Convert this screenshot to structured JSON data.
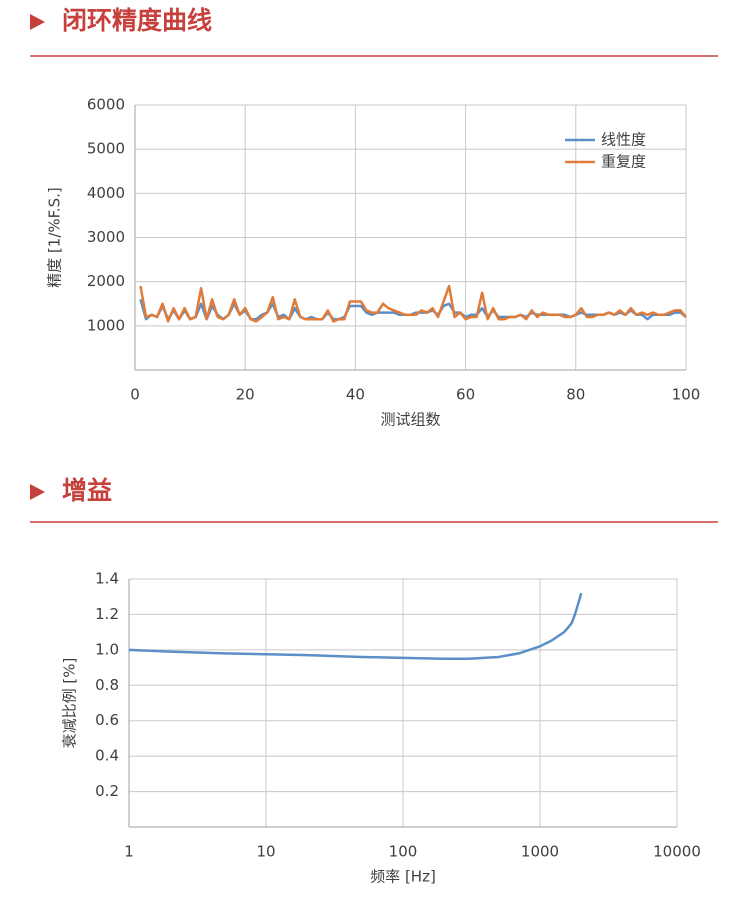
{
  "chart_data": [
    {
      "type": "line",
      "title": "闭环精度曲线",
      "xlabel": "测试组数",
      "ylabel": "精度 [1/%F.S.]",
      "x": [
        1,
        2,
        3,
        4,
        5,
        6,
        7,
        8,
        9,
        10,
        11,
        12,
        13,
        14,
        15,
        16,
        17,
        18,
        19,
        20,
        21,
        22,
        23,
        24,
        25,
        26,
        27,
        28,
        29,
        30,
        31,
        32,
        33,
        34,
        35,
        36,
        37,
        38,
        39,
        40,
        41,
        42,
        43,
        44,
        45,
        46,
        47,
        48,
        49,
        50,
        51,
        52,
        53,
        54,
        55,
        56,
        57,
        58,
        59,
        60,
        61,
        62,
        63,
        64,
        65,
        66,
        67,
        68,
        69,
        70,
        71,
        72,
        73,
        74,
        75,
        76,
        77,
        78,
        79,
        80,
        81,
        82,
        83,
        84,
        85,
        86,
        87,
        88,
        89,
        90,
        91,
        92,
        93,
        94,
        95,
        96,
        97,
        98,
        99,
        100
      ],
      "xlim": [
        0,
        100
      ],
      "xticks": [
        0,
        20,
        40,
        60,
        80,
        100
      ],
      "ylim": [
        0,
        6000
      ],
      "yticks": [
        1000,
        2000,
        3000,
        4000,
        5000,
        6000
      ],
      "grid": true,
      "legend": "upper right",
      "series": [
        {
          "name": "线性度",
          "color": "#5b8fc7",
          "values": [
            1600,
            1150,
            1250,
            1200,
            1450,
            1150,
            1350,
            1150,
            1350,
            1150,
            1200,
            1500,
            1150,
            1450,
            1250,
            1150,
            1250,
            1500,
            1250,
            1350,
            1150,
            1150,
            1250,
            1300,
            1500,
            1200,
            1250,
            1150,
            1400,
            1200,
            1150,
            1200,
            1150,
            1150,
            1300,
            1150,
            1150,
            1200,
            1450,
            1450,
            1450,
            1300,
            1250,
            1300,
            1300,
            1300,
            1300,
            1250,
            1250,
            1250,
            1300,
            1300,
            1300,
            1350,
            1250,
            1450,
            1500,
            1300,
            1300,
            1200,
            1250,
            1250,
            1400,
            1200,
            1350,
            1200,
            1200,
            1200,
            1200,
            1250,
            1200,
            1300,
            1250,
            1250,
            1250,
            1250,
            1250,
            1250,
            1200,
            1250,
            1300,
            1250,
            1250,
            1250,
            1250,
            1300,
            1250,
            1300,
            1250,
            1350,
            1250,
            1250,
            1150,
            1250,
            1250,
            1250,
            1250,
            1300,
            1300,
            1200
          ]
        },
        {
          "name": "重复度",
          "color": "#e07b39",
          "values": [
            1900,
            1200,
            1250,
            1200,
            1500,
            1100,
            1400,
            1150,
            1400,
            1150,
            1200,
            1850,
            1150,
            1600,
            1200,
            1150,
            1250,
            1600,
            1250,
            1400,
            1150,
            1100,
            1200,
            1300,
            1650,
            1150,
            1200,
            1150,
            1600,
            1200,
            1150,
            1150,
            1150,
            1150,
            1350,
            1100,
            1150,
            1150,
            1550,
            1550,
            1550,
            1350,
            1300,
            1300,
            1500,
            1400,
            1350,
            1300,
            1250,
            1250,
            1250,
            1350,
            1300,
            1400,
            1200,
            1550,
            1900,
            1200,
            1300,
            1150,
            1200,
            1200,
            1750,
            1150,
            1400,
            1150,
            1150,
            1200,
            1200,
            1250,
            1150,
            1350,
            1200,
            1300,
            1250,
            1250,
            1250,
            1200,
            1200,
            1250,
            1400,
            1200,
            1200,
            1250,
            1250,
            1300,
            1250,
            1350,
            1250,
            1400,
            1250,
            1300,
            1250,
            1300,
            1250,
            1250,
            1300,
            1350,
            1350,
            1200
          ]
        }
      ]
    },
    {
      "type": "line",
      "title": "增益",
      "xlabel": "频率 [Hz]",
      "ylabel": "衰减比例 [%]",
      "xscale": "log",
      "x": [
        1,
        2,
        5,
        10,
        20,
        50,
        100,
        200,
        300,
        500,
        700,
        1000,
        1200,
        1500,
        1700,
        1800,
        2000
      ],
      "xlim": [
        1,
        10000
      ],
      "xticks": [
        1,
        10,
        100,
        1000,
        10000
      ],
      "ylim": [
        0,
        1.4
      ],
      "yticks": [
        0.2,
        0.4,
        0.6,
        0.8,
        {
          "value": 1,
          "label": "1.0"
        },
        1.2,
        1.4
      ],
      "grid": true,
      "series": [
        {
          "color": "#5b8fc7",
          "values": [
            1.0,
            0.99,
            0.98,
            0.975,
            0.97,
            0.96,
            0.955,
            0.95,
            0.95,
            0.96,
            0.98,
            1.02,
            1.05,
            1.1,
            1.15,
            1.2,
            1.32
          ]
        }
      ]
    }
  ]
}
